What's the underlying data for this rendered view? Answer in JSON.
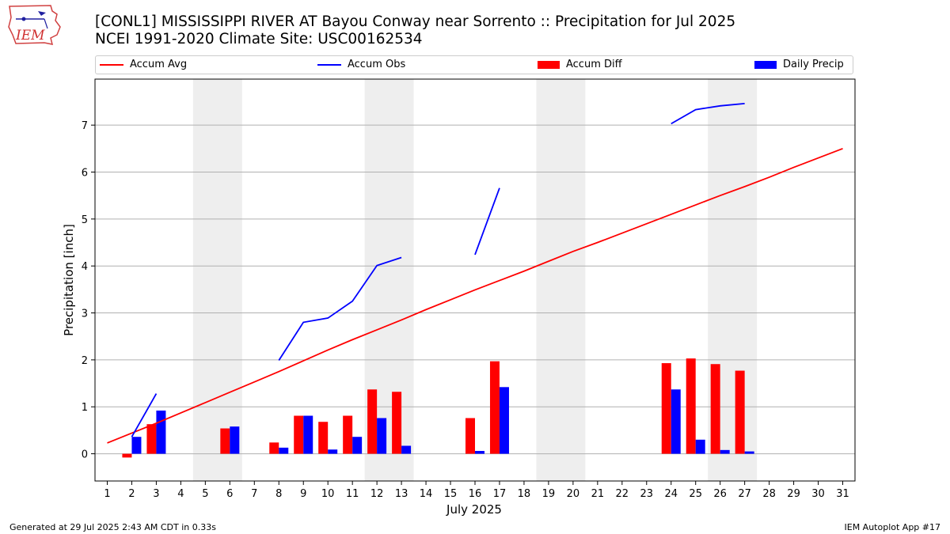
{
  "header": {
    "title_line1": "[CONL1] MISSISSIPPI RIVER  AT Bayou Conway near Sorrento :: Precipitation for Jul 2025",
    "title_line2": "NCEI 1991-2020 Climate Site: USC00162534",
    "logo_text": "IEM"
  },
  "legend": {
    "accum_avg": "Accum Avg",
    "accum_obs": "Accum Obs",
    "accum_diff": "Accum Diff",
    "daily_precip": "Daily Precip"
  },
  "footer": {
    "left": "Generated at 29 Jul 2025 2:43 AM CDT in 0.33s",
    "right": "IEM Autoplot App #17"
  },
  "colors": {
    "accum_avg": "#ff0000",
    "accum_obs": "#0000ff",
    "accum_diff": "#ff0000",
    "daily_precip": "#0000ff",
    "weekend_shade": "#eeeeee",
    "grid": "#b0b0b0"
  },
  "chart_data": {
    "type": "bar",
    "xlabel": "July 2025",
    "ylabel": "Precipitation [inch]",
    "xlim": [
      0.5,
      31.5
    ],
    "ylim": [
      -0.58,
      7.98
    ],
    "x_ticks": [
      1,
      2,
      3,
      4,
      5,
      6,
      7,
      8,
      9,
      10,
      11,
      12,
      13,
      14,
      15,
      16,
      17,
      18,
      19,
      20,
      21,
      22,
      23,
      24,
      25,
      26,
      27,
      28,
      29,
      30,
      31
    ],
    "y_ticks": [
      0,
      1,
      2,
      3,
      4,
      5,
      6,
      7
    ],
    "grid": "horizontal",
    "legend_position": "top",
    "weekend_shading": [
      [
        5,
        6
      ],
      [
        12,
        13
      ],
      [
        19,
        20
      ],
      [
        26,
        27
      ]
    ],
    "series": [
      {
        "name": "Accum Avg",
        "kind": "line",
        "x": [
          1,
          2,
          3,
          4,
          5,
          6,
          7,
          8,
          9,
          10,
          11,
          12,
          13,
          14,
          15,
          16,
          17,
          18,
          19,
          20,
          21,
          22,
          23,
          24,
          25,
          26,
          27,
          28,
          29,
          30,
          31
        ],
        "values": [
          0.23,
          0.44,
          0.65,
          0.87,
          1.09,
          1.31,
          1.53,
          1.75,
          1.98,
          2.21,
          2.43,
          2.64,
          2.85,
          3.07,
          3.28,
          3.49,
          3.69,
          3.89,
          4.1,
          4.31,
          4.5,
          4.7,
          4.9,
          5.1,
          5.3,
          5.5,
          5.69,
          5.89,
          6.1,
          6.3,
          6.5
        ]
      },
      {
        "name": "Accum Obs",
        "kind": "line",
        "segments": [
          {
            "x": [
              2,
              3
            ],
            "values": [
              0.36,
              1.28
            ]
          },
          {
            "x": [
              8,
              9,
              10,
              11,
              12,
              13
            ],
            "values": [
              1.99,
              2.8,
              2.89,
              3.25,
              4.01,
              4.18
            ]
          },
          {
            "x": [
              16,
              17
            ],
            "values": [
              4.24,
              5.66
            ]
          },
          {
            "x": [
              24,
              25,
              26,
              27
            ],
            "values": [
              7.03,
              7.33,
              7.41,
              7.46
            ]
          }
        ]
      },
      {
        "name": "Accum Diff",
        "kind": "bar",
        "x": [
          2,
          3,
          6,
          8,
          9,
          10,
          11,
          12,
          13,
          16,
          17,
          24,
          25,
          26,
          27
        ],
        "values": [
          -0.08,
          0.63,
          0.54,
          0.24,
          0.81,
          0.68,
          0.81,
          1.37,
          1.32,
          0.76,
          1.97,
          1.93,
          2.03,
          1.91,
          1.77
        ]
      },
      {
        "name": "Daily Precip",
        "kind": "bar",
        "x": [
          2,
          3,
          6,
          8,
          9,
          10,
          11,
          12,
          13,
          16,
          17,
          24,
          25,
          26,
          27
        ],
        "values": [
          0.36,
          0.92,
          0.58,
          0.13,
          0.81,
          0.09,
          0.36,
          0.76,
          0.17,
          0.06,
          1.42,
          1.37,
          0.3,
          0.08,
          0.05
        ]
      }
    ]
  }
}
